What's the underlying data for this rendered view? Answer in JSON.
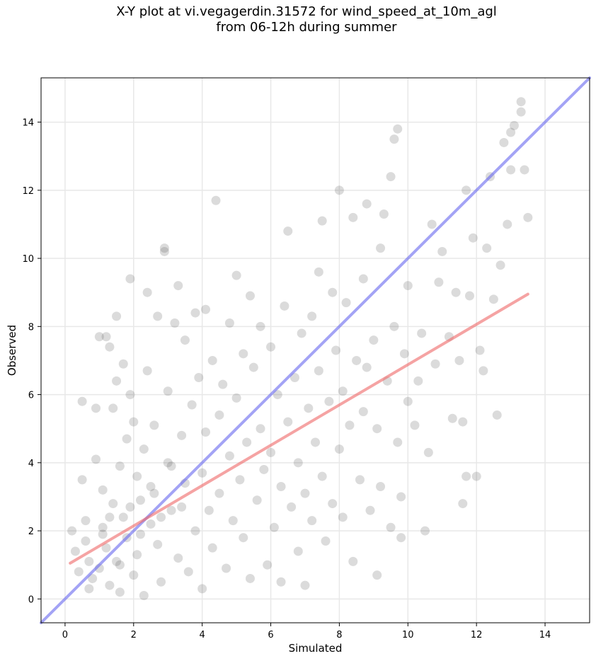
{
  "chart_data": {
    "type": "scatter",
    "title_line1": "X-Y plot at vi.vegagerdin.31572 for wind_speed_at_10m_agl",
    "title_line2": "from 06-12h during summer",
    "xlabel": "Simulated",
    "ylabel": "Observed",
    "xlim": [
      -0.7,
      15.3
    ],
    "ylim": [
      -0.7,
      15.3
    ],
    "xticks": [
      0,
      2,
      4,
      6,
      8,
      10,
      12,
      14
    ],
    "yticks": [
      0,
      2,
      4,
      6,
      8,
      10,
      12,
      14
    ],
    "grid": true,
    "colors": {
      "points": "#4d4d4d",
      "identity_line": "#6666ee",
      "fit_line": "#ee6666"
    },
    "identity_line": {
      "x": [
        -0.7,
        15.3
      ],
      "y": [
        -0.7,
        15.3
      ]
    },
    "fit_line": {
      "x": [
        0.15,
        13.5
      ],
      "y": [
        1.05,
        8.95
      ]
    },
    "points": [
      [
        0.2,
        2.0
      ],
      [
        0.3,
        1.4
      ],
      [
        0.4,
        0.8
      ],
      [
        0.5,
        5.8
      ],
      [
        0.5,
        3.5
      ],
      [
        0.6,
        2.3
      ],
      [
        0.6,
        1.7
      ],
      [
        0.7,
        0.3
      ],
      [
        0.7,
        1.1
      ],
      [
        0.8,
        0.6
      ],
      [
        0.9,
        4.1
      ],
      [
        0.9,
        5.6
      ],
      [
        1.0,
        7.7
      ],
      [
        1.0,
        0.9
      ],
      [
        1.1,
        3.2
      ],
      [
        1.1,
        2.1
      ],
      [
        1.2,
        7.7
      ],
      [
        1.2,
        1.5
      ],
      [
        1.3,
        7.4
      ],
      [
        1.3,
        0.4
      ],
      [
        1.4,
        5.6
      ],
      [
        1.4,
        2.8
      ],
      [
        1.5,
        8.3
      ],
      [
        1.5,
        1.1
      ],
      [
        1.5,
        6.4
      ],
      [
        1.6,
        3.9
      ],
      [
        1.6,
        0.2
      ],
      [
        1.7,
        6.9
      ],
      [
        1.7,
        2.4
      ],
      [
        1.8,
        1.8
      ],
      [
        1.8,
        4.7
      ],
      [
        1.9,
        6.0
      ],
      [
        1.9,
        9.4
      ],
      [
        2.0,
        5.2
      ],
      [
        2.0,
        0.7
      ],
      [
        2.1,
        3.6
      ],
      [
        2.1,
        1.3
      ],
      [
        2.2,
        2.9
      ],
      [
        2.3,
        4.4
      ],
      [
        2.3,
        0.1
      ],
      [
        2.4,
        6.7
      ],
      [
        2.4,
        9.0
      ],
      [
        2.5,
        2.2
      ],
      [
        2.6,
        3.1
      ],
      [
        2.6,
        5.1
      ],
      [
        2.7,
        8.3
      ],
      [
        2.7,
        1.6
      ],
      [
        2.8,
        0.5
      ],
      [
        2.9,
        10.2
      ],
      [
        2.9,
        10.3
      ],
      [
        3.0,
        4.0
      ],
      [
        3.0,
        6.1
      ],
      [
        3.1,
        2.6
      ],
      [
        3.2,
        8.1
      ],
      [
        3.3,
        9.2
      ],
      [
        3.3,
        1.2
      ],
      [
        3.4,
        4.8
      ],
      [
        3.5,
        7.6
      ],
      [
        3.5,
        3.4
      ],
      [
        3.6,
        0.8
      ],
      [
        3.7,
        5.7
      ],
      [
        3.8,
        2.0
      ],
      [
        3.8,
        8.4
      ],
      [
        3.9,
        6.5
      ],
      [
        4.0,
        3.7
      ],
      [
        4.0,
        0.3
      ],
      [
        4.1,
        8.5
      ],
      [
        4.1,
        4.9
      ],
      [
        4.2,
        2.6
      ],
      [
        4.3,
        7.0
      ],
      [
        4.3,
        1.5
      ],
      [
        4.4,
        11.7
      ],
      [
        4.5,
        5.4
      ],
      [
        4.5,
        3.1
      ],
      [
        4.6,
        6.3
      ],
      [
        4.7,
        0.9
      ],
      [
        4.8,
        4.2
      ],
      [
        4.8,
        8.1
      ],
      [
        4.9,
        2.3
      ],
      [
        5.0,
        5.9
      ],
      [
        5.0,
        9.5
      ],
      [
        5.1,
        3.5
      ],
      [
        5.2,
        7.2
      ],
      [
        5.2,
        1.8
      ],
      [
        5.3,
        4.6
      ],
      [
        5.4,
        8.9
      ],
      [
        5.4,
        0.6
      ],
      [
        5.5,
        6.8
      ],
      [
        5.6,
        2.9
      ],
      [
        5.7,
        5.0
      ],
      [
        5.7,
        8.0
      ],
      [
        5.8,
        3.8
      ],
      [
        5.9,
        1.0
      ],
      [
        6.0,
        7.4
      ],
      [
        6.0,
        4.3
      ],
      [
        6.1,
        2.1
      ],
      [
        6.2,
        6.0
      ],
      [
        6.3,
        0.5
      ],
      [
        6.3,
        3.3
      ],
      [
        6.4,
        8.6
      ],
      [
        6.5,
        5.2
      ],
      [
        6.5,
        10.8
      ],
      [
        6.6,
        2.7
      ],
      [
        6.7,
        6.5
      ],
      [
        6.8,
        4.0
      ],
      [
        6.8,
        1.4
      ],
      [
        6.9,
        7.8
      ],
      [
        7.0,
        3.1
      ],
      [
        7.0,
        0.4
      ],
      [
        7.1,
        5.6
      ],
      [
        7.2,
        8.3
      ],
      [
        7.2,
        2.3
      ],
      [
        7.3,
        4.6
      ],
      [
        7.4,
        9.6
      ],
      [
        7.4,
        6.7
      ],
      [
        7.5,
        11.1
      ],
      [
        7.5,
        3.6
      ],
      [
        7.6,
        1.7
      ],
      [
        7.7,
        5.8
      ],
      [
        7.8,
        9.0
      ],
      [
        7.8,
        2.8
      ],
      [
        7.9,
        7.3
      ],
      [
        8.0,
        4.4
      ],
      [
        8.0,
        12.0
      ],
      [
        8.1,
        6.1
      ],
      [
        8.1,
        2.4
      ],
      [
        8.2,
        8.7
      ],
      [
        8.3,
        5.1
      ],
      [
        8.4,
        1.1
      ],
      [
        8.4,
        11.2
      ],
      [
        8.5,
        7.0
      ],
      [
        8.6,
        3.5
      ],
      [
        8.7,
        5.5
      ],
      [
        8.7,
        9.4
      ],
      [
        8.8,
        11.6
      ],
      [
        8.8,
        6.8
      ],
      [
        8.9,
        2.6
      ],
      [
        9.0,
        7.6
      ],
      [
        9.1,
        0.7
      ],
      [
        9.1,
        5.0
      ],
      [
        9.2,
        10.3
      ],
      [
        9.2,
        3.3
      ],
      [
        9.3,
        11.3
      ],
      [
        9.4,
        6.4
      ],
      [
        9.5,
        2.1
      ],
      [
        9.5,
        12.4
      ],
      [
        9.6,
        8.0
      ],
      [
        9.6,
        13.5
      ],
      [
        9.7,
        13.8
      ],
      [
        9.7,
        4.6
      ],
      [
        9.8,
        3.0
      ],
      [
        9.8,
        1.8
      ],
      [
        9.9,
        7.2
      ],
      [
        10.0,
        9.2
      ],
      [
        10.0,
        5.8
      ],
      [
        10.2,
        5.1
      ],
      [
        10.3,
        6.4
      ],
      [
        10.4,
        7.8
      ],
      [
        10.5,
        2.0
      ],
      [
        10.6,
        4.3
      ],
      [
        10.7,
        11.0
      ],
      [
        10.8,
        6.9
      ],
      [
        10.9,
        9.3
      ],
      [
        11.0,
        10.2
      ],
      [
        11.2,
        7.7
      ],
      [
        11.3,
        5.3
      ],
      [
        11.4,
        9.0
      ],
      [
        11.5,
        7.0
      ],
      [
        11.6,
        5.2
      ],
      [
        11.6,
        2.8
      ],
      [
        11.7,
        12.0
      ],
      [
        11.7,
        3.6
      ],
      [
        11.8,
        8.9
      ],
      [
        11.9,
        10.6
      ],
      [
        12.0,
        3.6
      ],
      [
        12.1,
        7.3
      ],
      [
        12.2,
        6.7
      ],
      [
        12.3,
        10.3
      ],
      [
        12.4,
        12.4
      ],
      [
        12.5,
        8.8
      ],
      [
        12.6,
        5.4
      ],
      [
        12.7,
        9.8
      ],
      [
        12.8,
        13.4
      ],
      [
        12.9,
        11.0
      ],
      [
        13.0,
        12.6
      ],
      [
        13.0,
        13.7
      ],
      [
        13.1,
        13.9
      ],
      [
        13.3,
        14.3
      ],
      [
        13.3,
        14.6
      ],
      [
        13.4,
        12.6
      ],
      [
        13.5,
        11.2
      ],
      [
        1.1,
        1.9
      ],
      [
        1.3,
        2.4
      ],
      [
        1.6,
        1.0
      ],
      [
        1.9,
        2.7
      ],
      [
        2.2,
        1.9
      ],
      [
        2.5,
        3.3
      ],
      [
        2.8,
        2.4
      ],
      [
        3.1,
        3.9
      ],
      [
        3.4,
        2.7
      ]
    ]
  }
}
